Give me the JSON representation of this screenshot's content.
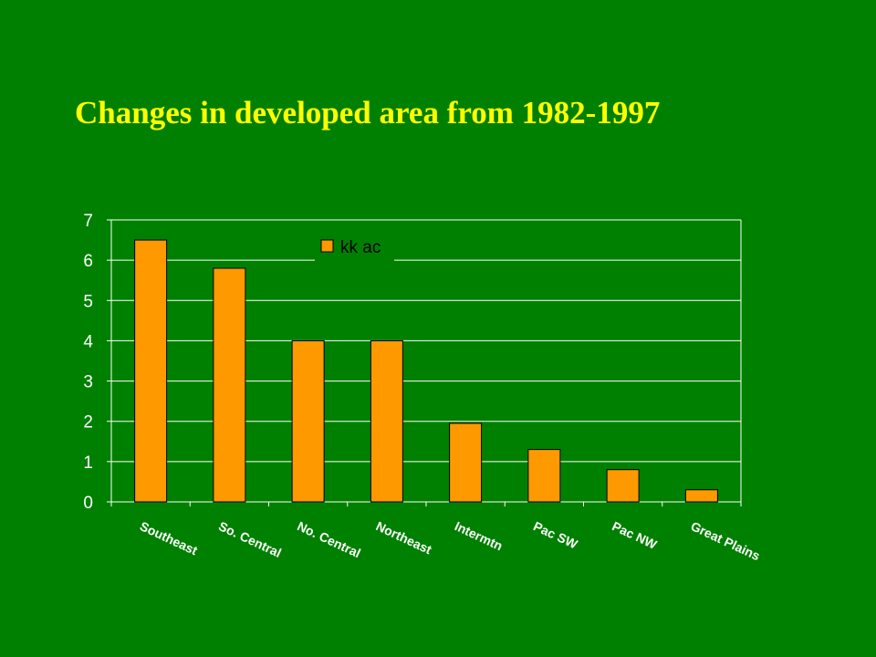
{
  "slide": {
    "title": "Changes in developed area from 1982-1997"
  },
  "colors": {
    "background": "#008000",
    "title": "#ffff00",
    "bar": "#ff9900",
    "grid": "#ffffff"
  },
  "chart_data": {
    "type": "bar",
    "categories": [
      "Southeast",
      "So. Central",
      "No. Central",
      "Northeast",
      "Intermtn",
      "Pac SW",
      "Pac NW",
      "Great Plains"
    ],
    "series": [
      {
        "name": "kk ac",
        "values": [
          6.5,
          5.8,
          4.0,
          4.0,
          1.95,
          1.3,
          0.8,
          0.3
        ]
      }
    ],
    "ylim": [
      0,
      7
    ],
    "yticks": [
      0,
      1,
      2,
      3,
      4,
      5,
      6,
      7
    ],
    "grid": true,
    "legend": "top-center"
  }
}
